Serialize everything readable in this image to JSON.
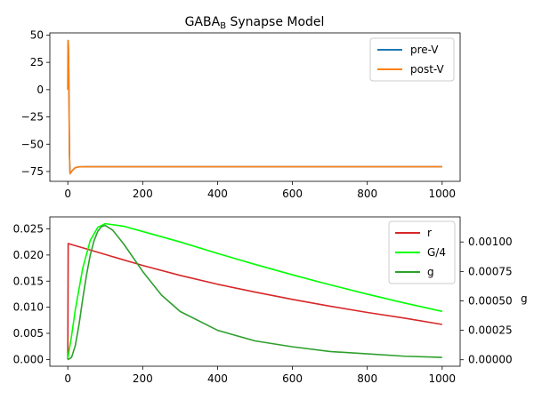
{
  "chart_data": [
    {
      "type": "line",
      "title": {
        "main": "GABA",
        "sub": "B",
        "rest": " Synapse Model"
      },
      "xlim": [
        -48,
        1048
      ],
      "ylim": [
        -84,
        52
      ],
      "xticks": [
        0,
        200,
        400,
        600,
        800,
        1000
      ],
      "yticks": [
        -75,
        -50,
        -25,
        0,
        25,
        50
      ],
      "legend": {
        "placement": "top-right"
      },
      "series": [
        {
          "name": "pre-V",
          "color": "#1f77b4",
          "points": [
            [
              0,
              0
            ],
            [
              0.3,
              44
            ],
            [
              1,
              45
            ],
            [
              1.6,
              40
            ],
            [
              2.5,
              20
            ],
            [
              3.5,
              -20
            ],
            [
              4.5,
              -60
            ],
            [
              6,
              -77
            ],
            [
              10,
              -75
            ],
            [
              15,
              -73
            ],
            [
              20,
              -71.5
            ],
            [
              30,
              -70.7
            ],
            [
              50,
              -70.6
            ],
            [
              100,
              -70.6
            ],
            [
              1000,
              -70.6
            ]
          ]
        },
        {
          "name": "post-V",
          "color": "#ff7f0e",
          "points": [
            [
              0,
              0
            ],
            [
              0.3,
              44
            ],
            [
              1,
              45
            ],
            [
              1.6,
              40
            ],
            [
              2.5,
              20
            ],
            [
              3.5,
              -20
            ],
            [
              4.5,
              -60
            ],
            [
              6,
              -77
            ],
            [
              10,
              -75
            ],
            [
              15,
              -73
            ],
            [
              20,
              -71.5
            ],
            [
              30,
              -70.7
            ],
            [
              50,
              -70.6
            ],
            [
              100,
              -70.6
            ],
            [
              1000,
              -70.6
            ]
          ]
        }
      ]
    },
    {
      "type": "line",
      "xlim": [
        -48,
        1048
      ],
      "ylim_left": [
        -0.0013,
        0.0273
      ],
      "ylim_right": [
        -5.5e-05,
        0.001213
      ],
      "xticks": [
        0,
        200,
        400,
        600,
        800,
        1000
      ],
      "yticks_left": [
        0.0,
        0.005,
        0.01,
        0.015,
        0.02,
        0.025
      ],
      "ytick_labels_left": [
        "0.000",
        "0.005",
        "0.010",
        "0.015",
        "0.020",
        "0.025"
      ],
      "yticks_right": [
        0.0,
        0.00025,
        0.0005,
        0.00075,
        0.001
      ],
      "ytick_labels_right": [
        "0.00000",
        "0.00025",
        "0.00050",
        "0.00075",
        "0.00100"
      ],
      "ylabel_right": "g",
      "legend": {
        "placement": "top-right"
      },
      "series": [
        {
          "name": "r",
          "color": "#d62728",
          "axis": "left",
          "points": [
            [
              0,
              0
            ],
            [
              1,
              0.0222
            ],
            [
              100,
              0.0201
            ],
            [
              200,
              0.018
            ],
            [
              300,
              0.0161
            ],
            [
              400,
              0.0144
            ],
            [
              500,
              0.0129
            ],
            [
              600,
              0.0115
            ],
            [
              700,
              0.0102
            ],
            [
              800,
              0.009
            ],
            [
              900,
              0.0079
            ],
            [
              1000,
              0.0067
            ]
          ]
        },
        {
          "name": "G/4",
          "color": "#00ff00",
          "axis": "left",
          "points": [
            [
              0,
              0.0002
            ],
            [
              10,
              0.0045
            ],
            [
              20,
              0.0095
            ],
            [
              40,
              0.0175
            ],
            [
              60,
              0.0228
            ],
            [
              80,
              0.0253
            ],
            [
              100,
              0.026
            ],
            [
              150,
              0.0255
            ],
            [
              200,
              0.0245
            ],
            [
              300,
              0.0225
            ],
            [
              400,
              0.0203
            ],
            [
              500,
              0.0182
            ],
            [
              600,
              0.0162
            ],
            [
              700,
              0.0143
            ],
            [
              800,
              0.0125
            ],
            [
              900,
              0.0108
            ],
            [
              1000,
              0.0092
            ]
          ]
        },
        {
          "name": "g",
          "color": "#2ca02c",
          "axis": "right",
          "points": [
            [
              0,
              0.0
            ],
            [
              10,
              2e-05
            ],
            [
              20,
              0.00012
            ],
            [
              30,
              0.0003
            ],
            [
              40,
              0.00052
            ],
            [
              50,
              0.00072
            ],
            [
              60,
              0.00089
            ],
            [
              70,
              0.00101
            ],
            [
              80,
              0.00109
            ],
            [
              90,
              0.00113
            ],
            [
              100,
              0.00114
            ],
            [
              120,
              0.0011
            ],
            [
              150,
              0.00098
            ],
            [
              200,
              0.00075
            ],
            [
              250,
              0.00055
            ],
            [
              300,
              0.00041
            ],
            [
              400,
              0.00025
            ],
            [
              500,
              0.00016
            ],
            [
              600,
              0.00011
            ],
            [
              700,
              7e-05
            ],
            [
              800,
              5e-05
            ],
            [
              900,
              3e-05
            ],
            [
              1000,
              2e-05
            ]
          ]
        }
      ]
    }
  ]
}
